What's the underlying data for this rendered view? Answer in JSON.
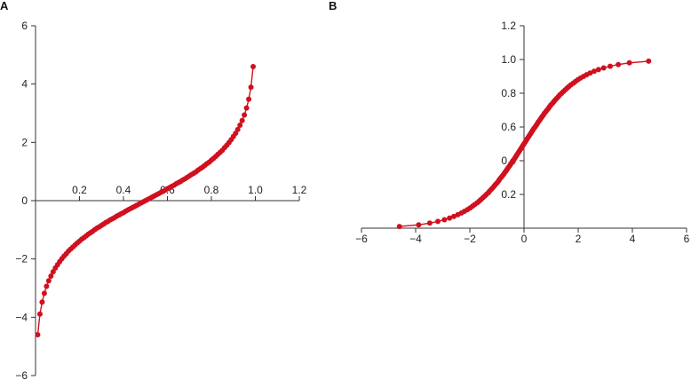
{
  "chart_data": [
    {
      "type": "line",
      "panel_label": "A",
      "title": "",
      "xlabel": "",
      "ylabel": "",
      "xlim": [
        0,
        1.2
      ],
      "ylim": [
        -6,
        6
      ],
      "x_ticks": [
        0.2,
        0.4,
        0.6,
        0.8,
        1.0,
        1.2
      ],
      "x_tick_labels": [
        "0.2",
        "0.4",
        "0.6",
        "0.8",
        "1.0",
        "1.2"
      ],
      "y_ticks": [
        -6,
        -4,
        -2,
        0,
        2,
        4,
        6
      ],
      "y_tick_labels": [
        "−6",
        "−4",
        "−2",
        "0",
        "2",
        "4",
        "6"
      ],
      "grid": false,
      "color": "#d0101f",
      "series": [
        {
          "x": [
            0.01,
            0.02,
            0.03,
            0.04,
            0.05,
            0.06,
            0.07,
            0.08,
            0.09,
            0.1,
            0.11,
            0.12,
            0.13,
            0.14,
            0.15,
            0.16,
            0.17,
            0.18,
            0.19,
            0.2,
            0.21,
            0.22,
            0.23,
            0.24,
            0.25,
            0.26,
            0.27,
            0.28,
            0.29,
            0.3,
            0.31,
            0.32,
            0.33,
            0.34,
            0.35,
            0.36,
            0.37,
            0.38,
            0.39,
            0.4,
            0.41,
            0.42,
            0.43,
            0.44,
            0.45,
            0.46,
            0.47,
            0.48,
            0.49,
            0.5,
            0.51,
            0.52,
            0.53,
            0.54,
            0.55,
            0.56,
            0.57,
            0.58,
            0.59,
            0.6,
            0.61,
            0.62,
            0.63,
            0.64,
            0.65,
            0.66,
            0.67,
            0.68,
            0.69,
            0.7,
            0.71,
            0.72,
            0.73,
            0.74,
            0.75,
            0.76,
            0.77,
            0.78,
            0.79,
            0.8,
            0.81,
            0.82,
            0.83,
            0.84,
            0.85,
            0.86,
            0.87,
            0.88,
            0.89,
            0.9,
            0.91,
            0.92,
            0.93,
            0.94,
            0.95,
            0.96,
            0.97,
            0.98,
            0.99
          ],
          "y": [
            -4.6,
            -3.89,
            -3.48,
            -3.18,
            -2.94,
            -2.75,
            -2.59,
            -2.44,
            -2.31,
            -2.2,
            -2.09,
            -1.99,
            -1.9,
            -1.82,
            -1.73,
            -1.66,
            -1.59,
            -1.52,
            -1.45,
            -1.39,
            -1.32,
            -1.27,
            -1.21,
            -1.15,
            -1.1,
            -1.05,
            -0.99,
            -0.94,
            -0.9,
            -0.85,
            -0.8,
            -0.75,
            -0.71,
            -0.66,
            -0.62,
            -0.58,
            -0.53,
            -0.49,
            -0.45,
            -0.41,
            -0.36,
            -0.32,
            -0.28,
            -0.24,
            -0.2,
            -0.16,
            -0.12,
            -0.08,
            -0.04,
            0.0,
            0.04,
            0.08,
            0.12,
            0.16,
            0.2,
            0.24,
            0.28,
            0.32,
            0.36,
            0.41,
            0.45,
            0.49,
            0.53,
            0.58,
            0.62,
            0.66,
            0.71,
            0.75,
            0.8,
            0.85,
            0.9,
            0.94,
            0.99,
            1.05,
            1.1,
            1.15,
            1.21,
            1.27,
            1.32,
            1.39,
            1.45,
            1.52,
            1.59,
            1.66,
            1.73,
            1.82,
            1.9,
            1.99,
            2.09,
            2.2,
            2.31,
            2.44,
            2.59,
            2.75,
            2.94,
            3.18,
            3.48,
            3.89,
            4.6
          ]
        }
      ]
    },
    {
      "type": "line",
      "panel_label": "B",
      "title": "",
      "xlabel": "",
      "ylabel": "",
      "xlim": [
        -6,
        6
      ],
      "ylim": [
        0,
        1.2
      ],
      "x_ticks": [
        -6,
        -4,
        -2,
        0,
        2,
        4,
        6
      ],
      "x_tick_labels": [
        "−6",
        "−4",
        "−2",
        "0",
        "2",
        "4",
        "6"
      ],
      "y_ticks": [
        0.2,
        0.4,
        0.6,
        0.8,
        1.0,
        1.2
      ],
      "y_tick_labels": [
        "0.2",
        "0.4",
        "0.6",
        "0.8",
        "1.0",
        "1.2"
      ],
      "grid": false,
      "color": "#d0101f",
      "series": [
        {
          "x": [
            -4.6,
            -3.89,
            -3.48,
            -3.18,
            -2.94,
            -2.75,
            -2.59,
            -2.44,
            -2.31,
            -2.2,
            -2.09,
            -1.99,
            -1.9,
            -1.82,
            -1.73,
            -1.66,
            -1.59,
            -1.52,
            -1.45,
            -1.39,
            -1.32,
            -1.27,
            -1.21,
            -1.15,
            -1.1,
            -1.05,
            -0.99,
            -0.94,
            -0.9,
            -0.85,
            -0.8,
            -0.75,
            -0.71,
            -0.66,
            -0.62,
            -0.58,
            -0.53,
            -0.49,
            -0.45,
            -0.41,
            -0.36,
            -0.32,
            -0.28,
            -0.24,
            -0.2,
            -0.16,
            -0.12,
            -0.08,
            -0.04,
            0.0,
            0.04,
            0.08,
            0.12,
            0.16,
            0.2,
            0.24,
            0.28,
            0.32,
            0.36,
            0.41,
            0.45,
            0.49,
            0.53,
            0.58,
            0.62,
            0.66,
            0.71,
            0.75,
            0.8,
            0.85,
            0.9,
            0.94,
            0.99,
            1.05,
            1.1,
            1.15,
            1.21,
            1.27,
            1.32,
            1.39,
            1.45,
            1.52,
            1.59,
            1.66,
            1.73,
            1.82,
            1.9,
            1.99,
            2.09,
            2.2,
            2.31,
            2.44,
            2.59,
            2.75,
            2.94,
            3.18,
            3.48,
            3.89,
            4.6
          ],
          "y": [
            0.01,
            0.02,
            0.03,
            0.04,
            0.05,
            0.06,
            0.07,
            0.08,
            0.09,
            0.1,
            0.11,
            0.12,
            0.13,
            0.14,
            0.15,
            0.16,
            0.17,
            0.18,
            0.19,
            0.2,
            0.21,
            0.22,
            0.23,
            0.24,
            0.25,
            0.26,
            0.27,
            0.28,
            0.29,
            0.3,
            0.31,
            0.32,
            0.33,
            0.34,
            0.35,
            0.36,
            0.37,
            0.38,
            0.39,
            0.4,
            0.41,
            0.42,
            0.43,
            0.44,
            0.45,
            0.46,
            0.47,
            0.48,
            0.49,
            0.5,
            0.51,
            0.52,
            0.53,
            0.54,
            0.55,
            0.56,
            0.57,
            0.58,
            0.59,
            0.6,
            0.61,
            0.62,
            0.63,
            0.64,
            0.65,
            0.66,
            0.67,
            0.68,
            0.69,
            0.7,
            0.71,
            0.72,
            0.73,
            0.74,
            0.75,
            0.76,
            0.77,
            0.78,
            0.79,
            0.8,
            0.81,
            0.82,
            0.83,
            0.84,
            0.85,
            0.86,
            0.87,
            0.88,
            0.89,
            0.9,
            0.91,
            0.92,
            0.93,
            0.94,
            0.95,
            0.96,
            0.97,
            0.98,
            0.99
          ]
        }
      ]
    }
  ]
}
